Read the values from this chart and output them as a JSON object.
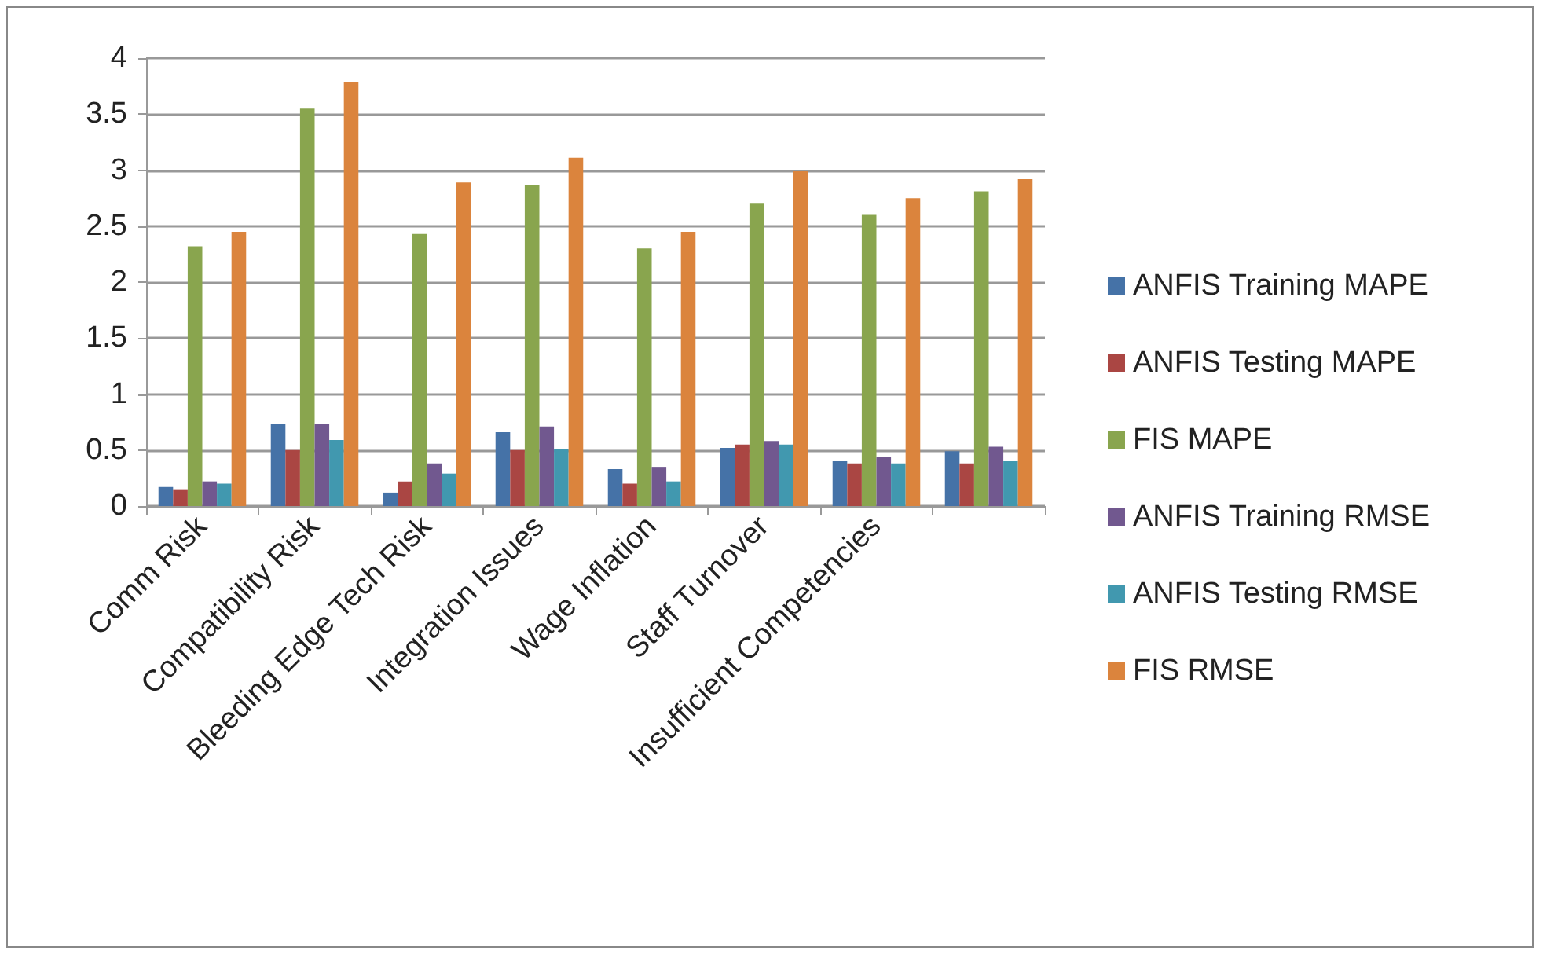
{
  "chart_data": {
    "type": "bar",
    "categories": [
      "Comm Risk",
      "Compatibility Risk",
      "Bleeding Edge Tech Risk",
      "Integration Issues",
      "Wage Inflation",
      "Staff Turnover",
      "Insufficient Competencies",
      null
    ],
    "series": [
      {
        "name": "ANFIS Training MAPE",
        "color": "#4572a7",
        "values": [
          0.17,
          0.73,
          0.12,
          0.66,
          0.33,
          0.52,
          0.4,
          0.49
        ]
      },
      {
        "name": "ANFIS Testing MAPE",
        "color": "#aa4643",
        "values": [
          0.15,
          0.5,
          0.22,
          0.5,
          0.2,
          0.55,
          0.38,
          0.38
        ]
      },
      {
        "name": "FIS MAPE",
        "color": "#89a54e",
        "values": [
          2.32,
          3.55,
          2.43,
          2.87,
          2.3,
          2.7,
          2.6,
          2.81
        ]
      },
      {
        "name": "ANFIS Training RMSE",
        "color": "#71588f",
        "values": [
          0.22,
          0.73,
          0.38,
          0.71,
          0.35,
          0.58,
          0.44,
          0.53
        ]
      },
      {
        "name": "ANFIS Testing RMSE",
        "color": "#4198af",
        "values": [
          0.2,
          0.59,
          0.29,
          0.51,
          0.22,
          0.55,
          0.38,
          0.4
        ]
      },
      {
        "name": "FIS RMSE",
        "color": "#db843d",
        "values": [
          2.45,
          3.79,
          2.89,
          3.11,
          2.45,
          2.99,
          2.75,
          2.92
        ]
      }
    ],
    "ylim": [
      0,
      4
    ],
    "yticks": [
      0,
      0.5,
      1,
      1.5,
      2,
      2.5,
      3,
      3.5,
      4
    ],
    "grid": "y",
    "legend": "right"
  }
}
